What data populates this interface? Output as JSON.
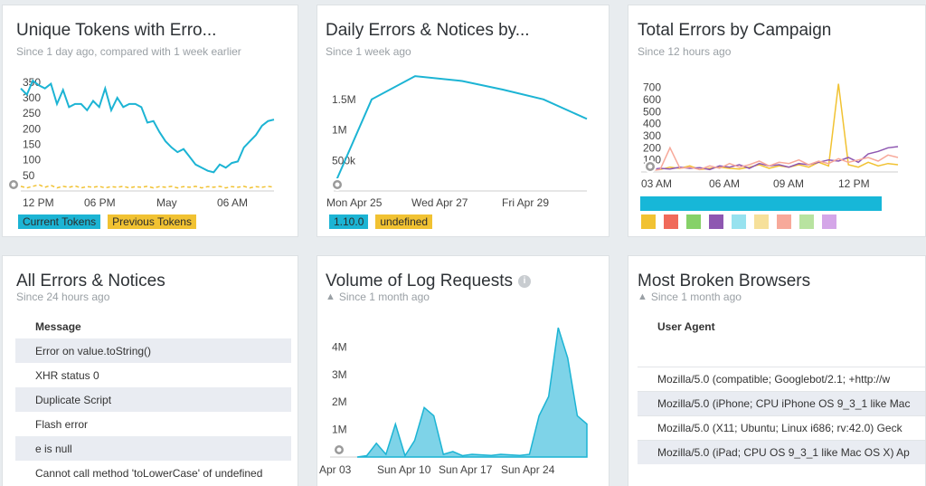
{
  "cards": {
    "unique_tokens": {
      "title": "Unique Tokens with Erro...",
      "subtitle": "Since 1 day ago, compared with 1 week earlier",
      "legend": [
        "Current Tokens",
        "Previous Tokens"
      ],
      "colors": {
        "current": "#1cb4d4",
        "previous": "#f1c232"
      }
    },
    "daily_errors": {
      "title": "Daily Errors & Notices by...",
      "subtitle": "Since 1 week ago",
      "legend": [
        "1.10.0",
        "undefined"
      ],
      "colors": {
        "series": "#1cb4d4",
        "undefined": "#f1c232"
      }
    },
    "total_errors": {
      "title": "Total Errors by Campaign",
      "subtitle": "Since 12 hours ago",
      "campaign_colors": [
        "#f1c232",
        "#f06a5a",
        "#86d168",
        "#8e57b1",
        "#97e2ef",
        "#f6e09a",
        "#f7a99a",
        "#b8e3a0",
        "#d4a6e8"
      ]
    },
    "all_errors": {
      "title": "All Errors & Notices",
      "subtitle": "Since 24 hours ago",
      "column": "Message",
      "rows": [
        "Error on value.toString()",
        "XHR status 0",
        "Duplicate Script",
        "Flash error",
        "e is null",
        "Cannot call method 'toLowerCase' of undefined"
      ]
    },
    "log_volume": {
      "title": "Volume of Log Requests",
      "subtitle": "Since 1 month ago"
    },
    "broken_browsers": {
      "title": "Most Broken Browsers",
      "subtitle": "Since 1 month ago",
      "column": "User Agent",
      "rows": [
        "Mozilla/5.0 (compatible; Googlebot/2.1; +http://w",
        "Mozilla/5.0 (iPhone; CPU iPhone OS 9_3_1 like Mac",
        "Mozilla/5.0 (X11; Ubuntu; Linux i686; rv:42.0) Geck",
        "Mozilla/5.0 (iPad; CPU OS 9_3_1 like Mac OS X) Ap"
      ]
    }
  },
  "chart_data": [
    {
      "type": "line",
      "title": "Unique Tokens with Erro...",
      "x_ticks": [
        "12 PM",
        "06 PM",
        "May",
        "06 AM"
      ],
      "y_ticks": [
        50,
        100,
        150,
        200,
        250,
        300,
        350
      ],
      "ylim": [
        0,
        370
      ],
      "series": [
        {
          "name": "Current Tokens",
          "values": [
            330,
            310,
            355,
            340,
            330,
            345,
            280,
            325,
            270,
            280,
            280,
            260,
            290,
            270,
            330,
            260,
            300,
            270,
            280,
            280,
            270,
            220,
            225,
            190,
            160,
            140,
            125,
            135,
            110,
            85,
            75,
            65,
            60,
            85,
            75,
            90,
            95,
            140,
            160,
            180,
            210,
            225,
            230
          ]
        },
        {
          "name": "Previous Tokens",
          "values": [
            15,
            10,
            15,
            20,
            12,
            18,
            10,
            15,
            12,
            16,
            10,
            14,
            12,
            15,
            10,
            14,
            12,
            15,
            10,
            14,
            12,
            15,
            10,
            14,
            12,
            15,
            10,
            14,
            12,
            15,
            10,
            14,
            12,
            15,
            10,
            14,
            12,
            15,
            10,
            14,
            12,
            15,
            12
          ]
        }
      ]
    },
    {
      "type": "line",
      "title": "Daily Errors & Notices by...",
      "x_ticks": [
        "Mon Apr 25",
        "Wed Apr 27",
        "Fri Apr 29"
      ],
      "y_ticks": [
        "500k",
        "1M",
        "1.5M"
      ],
      "ylim": [
        0,
        2000000
      ],
      "series": [
        {
          "name": "1.10.0",
          "values": [
            300000,
            1500000,
            1880000,
            1800000,
            1660000,
            1500000,
            1180000
          ]
        }
      ]
    },
    {
      "type": "line",
      "title": "Total Errors by Campaign",
      "x_ticks": [
        "03 AM",
        "06 AM",
        "09 AM",
        "12 PM"
      ],
      "y_ticks": [
        100,
        200,
        300,
        400,
        500,
        600,
        700
      ],
      "ylim": [
        0,
        780
      ],
      "series": [
        {
          "values": [
            30,
            20,
            40,
            30,
            50,
            20,
            30,
            40,
            30,
            25,
            40,
            60,
            30,
            50,
            40,
            60,
            40,
            80,
            50,
            730,
            60,
            40,
            80,
            50,
            70,
            60
          ]
        },
        {
          "values": [
            20,
            30,
            25,
            40,
            30,
            35,
            20,
            50,
            40,
            60,
            30,
            70,
            50,
            60,
            40,
            70,
            60,
            80,
            100,
            90,
            120,
            80,
            150,
            170,
            200,
            210
          ]
        },
        {
          "values": [
            10,
            20,
            200,
            30,
            40,
            20,
            50,
            30,
            70,
            40,
            60,
            90,
            50,
            80,
            70,
            100,
            60,
            90,
            70,
            110,
            80,
            100,
            120,
            90,
            140,
            120
          ]
        }
      ]
    },
    {
      "type": "area",
      "title": "Volume of Log Requests",
      "x_ticks": [
        "Apr 03",
        "Sun Apr 10",
        "Sun Apr 17",
        "Sun Apr 24"
      ],
      "y_ticks": [
        "1M",
        "2M",
        "3M",
        "4M"
      ],
      "ylim": [
        0,
        5000000
      ],
      "series": [
        {
          "values": [
            0,
            50000,
            500000,
            100000,
            1200000,
            50000,
            600000,
            1800000,
            1500000,
            100000,
            200000,
            50000,
            100000,
            80000,
            60000,
            100000,
            80000,
            60000,
            100000,
            1500000,
            2200000,
            4700000,
            3600000,
            1500000,
            1200000
          ]
        }
      ]
    }
  ]
}
